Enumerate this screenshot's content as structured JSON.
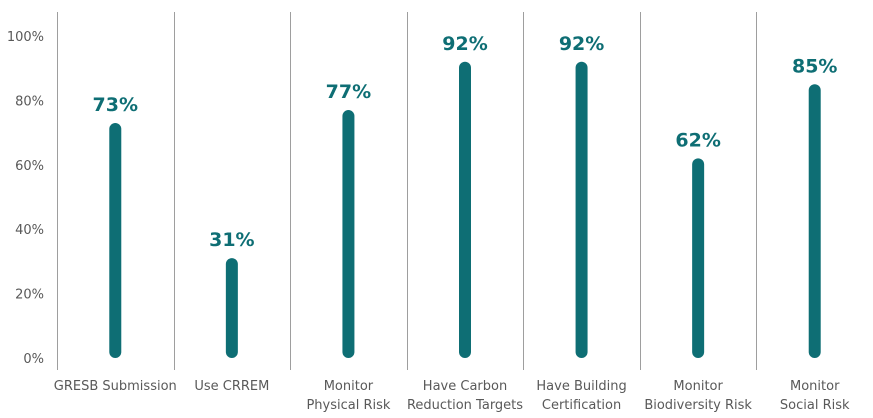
{
  "chart_data": {
    "type": "bar",
    "style": "lollipop-columns",
    "categories": [
      [
        "GRESB Submission"
      ],
      [
        "Use CRREM"
      ],
      [
        "Monitor",
        "Physical Risk"
      ],
      [
        "Have Carbon",
        "Reduction Targets"
      ],
      [
        "Have Building",
        "Certification"
      ],
      [
        "Monitor",
        "Biodiversity Risk"
      ],
      [
        "Monitor",
        "Social Risk"
      ]
    ],
    "values": [
      73,
      31,
      77,
      92,
      92,
      62,
      85
    ],
    "value_labels": [
      "73%",
      "31%",
      "77%",
      "92%",
      "92%",
      "62%",
      "85%"
    ],
    "y_ticks": [
      "0%",
      "20%",
      "40%",
      "60%",
      "80%",
      "100%"
    ],
    "ylim": [
      0,
      100
    ],
    "grid": "vertical separators between categories",
    "bar_color": "#0e6e74",
    "label_color": "#0e6e74",
    "axis_text_color": "#595959",
    "separator_color": "#9e9e9e"
  }
}
